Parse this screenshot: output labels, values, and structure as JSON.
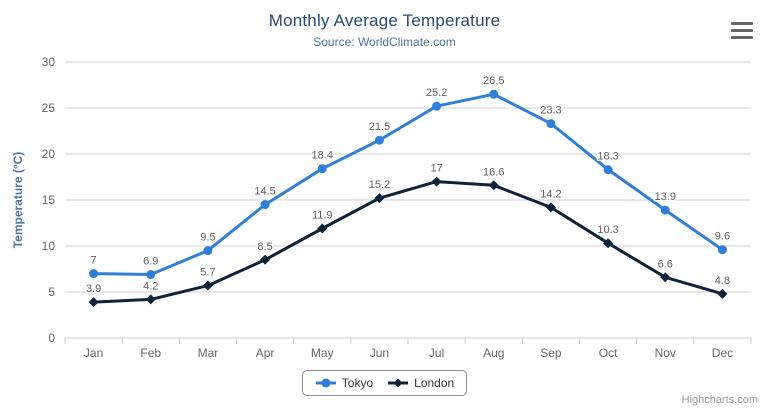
{
  "header": {
    "title": "Monthly Average Temperature",
    "subtitle": "Source: WorldClimate.com"
  },
  "icons": {
    "export_menu": "hamburger"
  },
  "credits_label": "Highcharts.com",
  "colors": {
    "title": "#274b6d",
    "subtitle": "#4d759e",
    "axis_labels": "#666666",
    "axis_line": "#c0d0e0",
    "gridline": "#d0d0d0",
    "data_label": "#606060",
    "legend_text": "#333333",
    "credit": "#999999"
  },
  "chart_data": {
    "type": "line",
    "title": "Monthly Average Temperature",
    "subtitle": "Source: WorldClimate.com",
    "xlabel": "",
    "ylabel": "Temperature (°C)",
    "ylim": [
      0,
      30
    ],
    "yticks": [
      0,
      5,
      10,
      15,
      20,
      25,
      30
    ],
    "grid": true,
    "legend_position": "bottom",
    "data_labels": true,
    "categories": [
      "Jan",
      "Feb",
      "Mar",
      "Apr",
      "May",
      "Jun",
      "Jul",
      "Aug",
      "Sep",
      "Oct",
      "Nov",
      "Dec"
    ],
    "series": [
      {
        "name": "Tokyo",
        "color": "#2f7ed8",
        "marker": "circle",
        "values": [
          7,
          6.9,
          9.5,
          14.5,
          18.4,
          21.5,
          25.2,
          26.5,
          23.3,
          18.3,
          13.9,
          9.6
        ]
      },
      {
        "name": "London",
        "color": "#0d233a",
        "marker": "diamond",
        "values": [
          3.9,
          4.2,
          5.7,
          8.5,
          11.9,
          15.2,
          17,
          16.6,
          14.2,
          10.3,
          6.6,
          4.8
        ]
      }
    ]
  }
}
